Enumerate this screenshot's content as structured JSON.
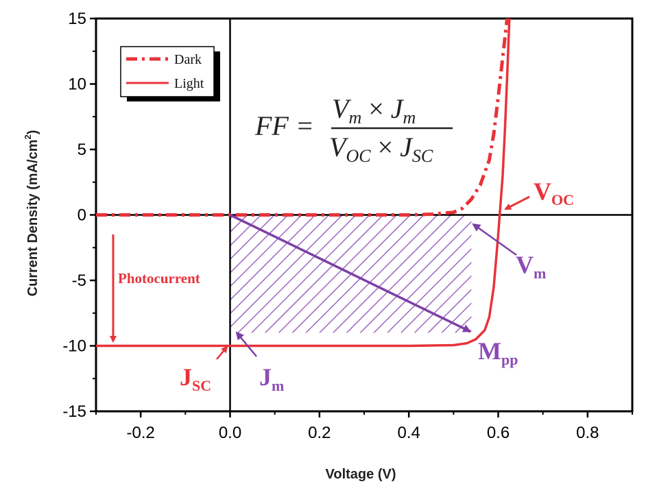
{
  "chart_data": {
    "type": "line",
    "xlabel": "Voltage (V)",
    "ylabel": "Current Density (mA/cm",
    "ylabel_sup": "2",
    "ylabel_close": ")",
    "xlim": [
      -0.3,
      0.9
    ],
    "ylim": [
      -15,
      15
    ],
    "x_ticks": [
      -0.2,
      0.0,
      0.2,
      0.4,
      0.6,
      0.8
    ],
    "x_tick_labels": [
      "-0.2",
      "0.0",
      "0.2",
      "0.4",
      "0.6",
      "0.8"
    ],
    "y_ticks": [
      15,
      10,
      5,
      0,
      -5,
      -10,
      -15
    ],
    "y_tick_labels": [
      "15",
      "10",
      "5",
      "0",
      "-5",
      "-10",
      "-15"
    ],
    "series": [
      {
        "name": "Dark",
        "style": "dash-dot",
        "color": "#e8333a",
        "x": [
          -0.3,
          0.0,
          0.2,
          0.4,
          0.45,
          0.5,
          0.52,
          0.54,
          0.56,
          0.58,
          0.59,
          0.6,
          0.61,
          0.62
        ],
        "y": [
          0,
          0,
          0,
          0,
          0.05,
          0.2,
          0.5,
          1.2,
          2.3,
          4.2,
          6.2,
          9.0,
          12.0,
          15.0
        ]
      },
      {
        "name": "Light",
        "style": "solid",
        "color": "#e8333a",
        "x": [
          -0.3,
          -0.2,
          0.0,
          0.2,
          0.4,
          0.5,
          0.53,
          0.55,
          0.57,
          0.58,
          0.59,
          0.6,
          0.61,
          0.615,
          0.62,
          0.625
        ],
        "y": [
          -10,
          -10,
          -10,
          -10,
          -10,
          -9.95,
          -9.8,
          -9.5,
          -8.8,
          -7.8,
          -5.5,
          -1.5,
          3.0,
          6.5,
          10.5,
          15.0
        ]
      }
    ],
    "mpp": {
      "x": 0.54,
      "y": -9.0
    },
    "voc": 0.6,
    "jsc": -10,
    "legend_position": "top-left",
    "grid": false
  },
  "annotations": {
    "photocurrent": "Photocurrent",
    "jsc_main": "J",
    "jsc_sub": "SC",
    "jm_main": "J",
    "jm_sub": "m",
    "voc_main": "V",
    "voc_sub": "OC",
    "vm_main": "V",
    "vm_sub": "m",
    "mpp_main": "M",
    "mpp_sub": "pp"
  },
  "formula": {
    "lhs": "FF =",
    "num_v": "V",
    "num_v_sub": "m",
    "num_times": " × ",
    "num_j": "J",
    "num_j_sub": "m",
    "den_v": "V",
    "den_v_sub": "OC",
    "den_times": " × ",
    "den_j": "J",
    "den_j_sub": "SC"
  },
  "colors": {
    "red": "#e8333a",
    "purple": "#8b4bb5"
  }
}
